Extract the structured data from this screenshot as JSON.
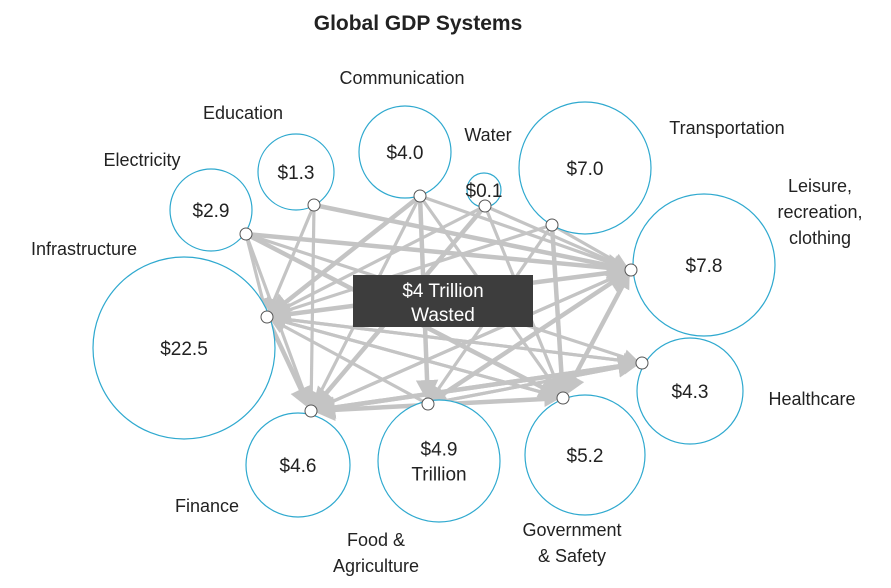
{
  "title": "Global GDP Systems",
  "callout": {
    "line1": "$4 Trillion",
    "line2": "Wasted"
  },
  "colors": {
    "bubble_stroke": "#2fa9cf",
    "flow": "#c4c4c4",
    "callout_bg": "#3d3d3d"
  },
  "nodes": [
    {
      "id": "infrastructure",
      "label": [
        "Infrastructure"
      ],
      "value": [
        "$22.5"
      ]
    },
    {
      "id": "electricity",
      "label": [
        "Electricity"
      ],
      "value": [
        "$2.9"
      ]
    },
    {
      "id": "education",
      "label": [
        "Education"
      ],
      "value": [
        "$1.3"
      ]
    },
    {
      "id": "communication",
      "label": [
        "Communication"
      ],
      "value": [
        "$4.0"
      ]
    },
    {
      "id": "water",
      "label": [
        "Water"
      ],
      "value": [
        "$0.1"
      ]
    },
    {
      "id": "transportation",
      "label": [
        "Transportation"
      ],
      "value": [
        "$7.0"
      ]
    },
    {
      "id": "leisure",
      "label": [
        "Leisure,",
        "recreation,",
        "clothing"
      ],
      "value": [
        "$7.8"
      ]
    },
    {
      "id": "healthcare",
      "label": [
        "Healthcare"
      ],
      "value": [
        "$4.3"
      ]
    },
    {
      "id": "government",
      "label": [
        "Government",
        "& Safety"
      ],
      "value": [
        "$5.2"
      ]
    },
    {
      "id": "food",
      "label": [
        "Food &",
        "Agriculture"
      ],
      "value": [
        "$4.9",
        "Trillion"
      ]
    },
    {
      "id": "finance",
      "label": [
        "Finance"
      ],
      "value": [
        "$4.6"
      ]
    }
  ],
  "flows": [
    [
      "electricity",
      "leisure"
    ],
    [
      "electricity",
      "healthcare"
    ],
    [
      "electricity",
      "finance"
    ],
    [
      "electricity",
      "government"
    ],
    [
      "electricity",
      "infrastructure"
    ],
    [
      "education",
      "finance"
    ],
    [
      "education",
      "leisure"
    ],
    [
      "education",
      "infrastructure"
    ],
    [
      "communication",
      "leisure"
    ],
    [
      "communication",
      "infrastructure"
    ],
    [
      "communication",
      "finance"
    ],
    [
      "communication",
      "government"
    ],
    [
      "communication",
      "food"
    ],
    [
      "water",
      "infrastructure"
    ],
    [
      "water",
      "government"
    ],
    [
      "water",
      "finance"
    ],
    [
      "water",
      "leisure"
    ],
    [
      "transportation",
      "infrastructure"
    ],
    [
      "transportation",
      "government"
    ],
    [
      "transportation",
      "food"
    ],
    [
      "transportation",
      "leisure"
    ],
    [
      "leisure",
      "infrastructure"
    ],
    [
      "leisure",
      "finance"
    ],
    [
      "leisure",
      "food"
    ],
    [
      "leisure",
      "government"
    ],
    [
      "infrastructure",
      "government"
    ],
    [
      "infrastructure",
      "healthcare"
    ],
    [
      "infrastructure",
      "finance"
    ],
    [
      "infrastructure",
      "leisure"
    ],
    [
      "healthcare",
      "infrastructure"
    ],
    [
      "healthcare",
      "finance"
    ],
    [
      "healthcare",
      "food"
    ],
    [
      "government",
      "infrastructure"
    ],
    [
      "government",
      "finance"
    ],
    [
      "government",
      "leisure"
    ],
    [
      "food",
      "infrastructure"
    ],
    [
      "food",
      "leisure"
    ],
    [
      "food",
      "healthcare"
    ],
    [
      "finance",
      "leisure"
    ],
    [
      "finance",
      "healthcare"
    ],
    [
      "finance",
      "government"
    ]
  ]
}
